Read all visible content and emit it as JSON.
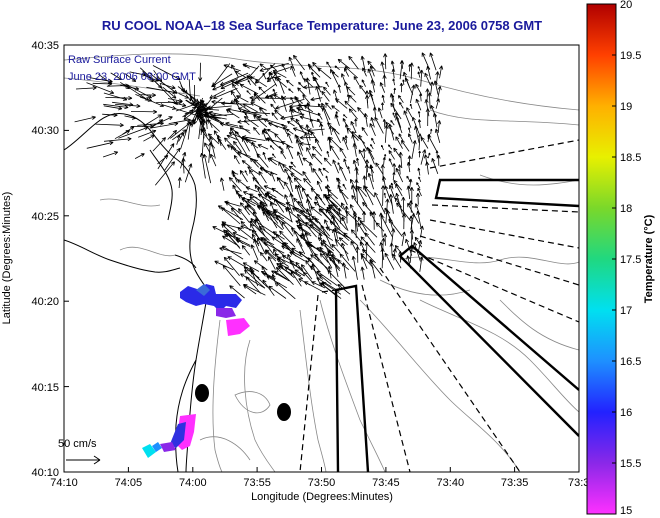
{
  "title": "RU COOL   NOAA–18  Sea Surface Temperature:  June 23, 2006 0758 GMT",
  "legend": {
    "line1": "Raw Surface Current",
    "line2": "June 23, 2006 08:00 GMT"
  },
  "scale_label": "50 cm/s",
  "xlabel": "Longitude (Degrees:Minutes)",
  "ylabel": "Latitude (Degrees:Minutes)",
  "x_ticks": [
    "74:10",
    "74:05",
    "74:00",
    "73:55",
    "73:50",
    "73:45",
    "73:40",
    "73:35",
    "73:3"
  ],
  "y_ticks": [
    "40:35",
    "40:30",
    "40:25",
    "40:20",
    "40:15",
    "40:10"
  ],
  "colorbar": {
    "label": "Temperature (°C)",
    "ticks": [
      "20",
      "19.5",
      "19",
      "18.5",
      "18",
      "17.5",
      "17",
      "16.5",
      "16",
      "15.5",
      "15"
    ],
    "range": [
      15,
      20
    ]
  }
}
